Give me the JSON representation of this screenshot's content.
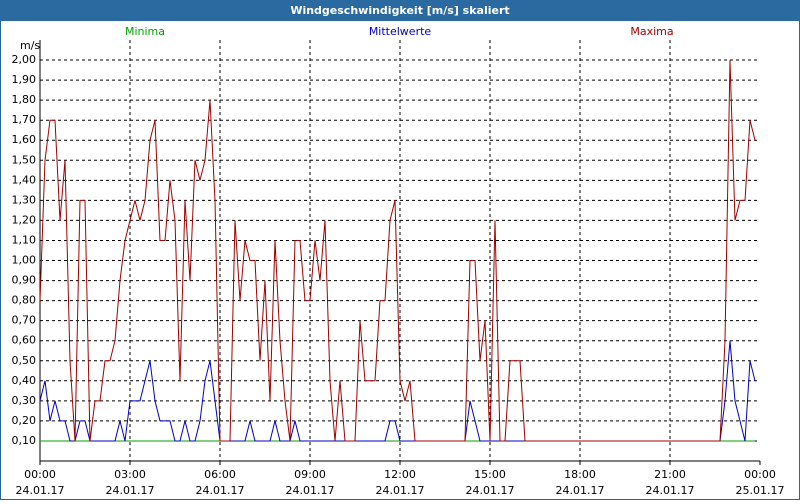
{
  "chart_data": {
    "type": "line",
    "title": "Windgeschwindigkeit [m/s] skaliert",
    "ylabel": "m/s",
    "xlim": [
      0,
      1440
    ],
    "xticks": [
      {
        "value": 0,
        "label": "00:00"
      },
      {
        "value": 180,
        "label": "03:00"
      },
      {
        "value": 360,
        "label": "06:00"
      },
      {
        "value": 540,
        "label": "09:00"
      },
      {
        "value": 720,
        "label": "12:00"
      },
      {
        "value": 900,
        "label": "15:00"
      },
      {
        "value": 1080,
        "label": "18:00"
      },
      {
        "value": 1260,
        "label": "21:00"
      },
      {
        "value": 1440,
        "label": "00:00"
      }
    ],
    "xtick_dates": [
      "24.01.17",
      "24.01.17",
      "24.01.17",
      "24.01.17",
      "24.01.17",
      "24.01.17",
      "24.01.17",
      "24.01.17",
      "25.01.17"
    ],
    "ylim": [
      0,
      2.1
    ],
    "yticks": [
      {
        "value": 0.1,
        "label": "0,10"
      },
      {
        "value": 0.2,
        "label": "0,20"
      },
      {
        "value": 0.3,
        "label": "0,30"
      },
      {
        "value": 0.4,
        "label": "0,40"
      },
      {
        "value": 0.5,
        "label": "0,50"
      },
      {
        "value": 0.6,
        "label": "0,60"
      },
      {
        "value": 0.7,
        "label": "0,70"
      },
      {
        "value": 0.8,
        "label": "0,80"
      },
      {
        "value": 0.9,
        "label": "0,90"
      },
      {
        "value": 1.0,
        "label": "1,00"
      },
      {
        "value": 1.1,
        "label": "1,10"
      },
      {
        "value": 1.2,
        "label": "1,20"
      },
      {
        "value": 1.3,
        "label": "1,30"
      },
      {
        "value": 1.4,
        "label": "1,40"
      },
      {
        "value": 1.5,
        "label": "1,50"
      },
      {
        "value": 1.6,
        "label": "1,60"
      },
      {
        "value": 1.7,
        "label": "1,70"
      },
      {
        "value": 1.8,
        "label": "1,80"
      },
      {
        "value": 1.9,
        "label": "1,90"
      },
      {
        "value": 2.0,
        "label": "2,00"
      }
    ],
    "grid": true,
    "x": [
      0,
      10,
      20,
      30,
      40,
      50,
      60,
      70,
      80,
      90,
      100,
      110,
      120,
      130,
      140,
      150,
      160,
      170,
      180,
      190,
      200,
      210,
      220,
      230,
      240,
      250,
      260,
      270,
      280,
      290,
      300,
      310,
      320,
      330,
      340,
      350,
      360,
      370,
      380,
      390,
      400,
      410,
      420,
      430,
      440,
      450,
      460,
      470,
      480,
      490,
      500,
      510,
      520,
      530,
      540,
      550,
      560,
      570,
      580,
      590,
      600,
      610,
      620,
      630,
      640,
      650,
      660,
      670,
      680,
      690,
      700,
      710,
      720,
      730,
      740,
      750,
      760,
      770,
      780,
      790,
      800,
      810,
      820,
      830,
      840,
      850,
      860,
      870,
      880,
      890,
      900,
      910,
      920,
      930,
      940,
      950,
      960,
      970,
      980,
      990,
      1000,
      1010,
      1020,
      1030,
      1040,
      1050,
      1060,
      1070,
      1080,
      1090,
      1100,
      1110,
      1120,
      1130,
      1140,
      1150,
      1160,
      1170,
      1180,
      1190,
      1200,
      1210,
      1220,
      1230,
      1240,
      1250,
      1260,
      1270,
      1280,
      1290,
      1300,
      1310,
      1320,
      1330,
      1340,
      1350,
      1360,
      1370,
      1380,
      1390,
      1400,
      1410,
      1420,
      1430
    ],
    "series": [
      {
        "name": "Minima",
        "color": "#00a000",
        "values": [
          0.1,
          0.1,
          0.1,
          0.1,
          0.1,
          0.1,
          0.1,
          0.1,
          0.1,
          0.1,
          0.1,
          0.1,
          0.1,
          0.1,
          0.1,
          0.1,
          0.1,
          0.1,
          0.1,
          0.1,
          0.1,
          0.1,
          0.1,
          0.1,
          0.1,
          0.1,
          0.1,
          0.1,
          0.1,
          0.1,
          0.1,
          0.1,
          0.1,
          0.1,
          0.1,
          0.1,
          0.1,
          0.1,
          0.1,
          0.1,
          0.1,
          0.1,
          0.1,
          0.1,
          0.1,
          0.1,
          0.1,
          0.1,
          0.1,
          0.1,
          0.1,
          0.1,
          0.1,
          0.1,
          0.1,
          0.1,
          0.1,
          0.1,
          0.1,
          0.1,
          0.1,
          0.1,
          0.1,
          0.1,
          0.1,
          0.1,
          0.1,
          0.1,
          0.1,
          0.1,
          0.1,
          0.1,
          0.1,
          0.1,
          0.1,
          0.1,
          0.1,
          0.1,
          0.1,
          0.1,
          0.1,
          0.1,
          0.1,
          0.1,
          0.1,
          0.1,
          0.1,
          0.1,
          0.1,
          0.1,
          0.1,
          0.1,
          0.1,
          0.1,
          0.1,
          0.1,
          0.1,
          0.1,
          0.1,
          0.1,
          0.1,
          0.1,
          0.1,
          0.1,
          0.1,
          0.1,
          0.1,
          0.1,
          0.1,
          0.1,
          0.1,
          0.1,
          0.1,
          0.1,
          0.1,
          0.1,
          0.1,
          0.1,
          0.1,
          0.1,
          0.1,
          0.1,
          0.1,
          0.1,
          0.1,
          0.1,
          0.1,
          0.1,
          0.1,
          0.1,
          0.1,
          0.1,
          0.1,
          0.1,
          0.1,
          0.1,
          0.1,
          0.1,
          0.1,
          0.1,
          0.1,
          0.1,
          0.1,
          0.1
        ]
      },
      {
        "name": "Mittelwerte",
        "color": "#0000c0",
        "values": [
          0.3,
          0.4,
          0.2,
          0.3,
          0.2,
          0.2,
          0.1,
          0.1,
          0.2,
          0.2,
          0.1,
          0.1,
          0.1,
          0.1,
          0.1,
          0.1,
          0.2,
          0.1,
          0.3,
          0.3,
          0.3,
          0.4,
          0.5,
          0.3,
          0.2,
          0.2,
          0.2,
          0.1,
          0.1,
          0.2,
          0.1,
          0.1,
          0.2,
          0.4,
          0.5,
          0.3,
          0.1,
          0.1,
          0.1,
          0.1,
          0.1,
          0.1,
          0.2,
          0.1,
          0.1,
          0.1,
          0.1,
          0.2,
          0.1,
          0.1,
          0.1,
          0.2,
          0.1,
          0.1,
          0.1,
          0.1,
          0.1,
          0.1,
          0.1,
          0.1,
          0.1,
          0.1,
          0.1,
          0.1,
          0.1,
          0.1,
          0.1,
          0.1,
          0.1,
          0.1,
          0.2,
          0.2,
          0.1,
          0.1,
          0.1,
          0.1,
          0.1,
          0.1,
          0.1,
          0.1,
          0.1,
          0.1,
          0.1,
          0.1,
          0.1,
          0.1,
          0.3,
          0.2,
          0.1,
          0.1,
          0.1,
          0.1,
          0.1,
          0.1,
          0.1,
          0.1,
          0.1,
          0.1,
          0.1,
          0.1,
          0.1,
          0.1,
          0.1,
          0.1,
          0.1,
          0.1,
          0.1,
          0.1,
          0.1,
          0.1,
          0.1,
          0.1,
          0.1,
          0.1,
          0.1,
          0.1,
          0.1,
          0.1,
          0.1,
          0.1,
          0.1,
          0.1,
          0.1,
          0.1,
          0.1,
          0.1,
          0.1,
          0.1,
          0.1,
          0.1,
          0.1,
          0.1,
          0.1,
          0.1,
          0.1,
          0.1,
          0.1,
          0.3,
          0.6,
          0.3,
          0.2,
          0.1,
          0.5,
          0.4
        ]
      },
      {
        "name": "Maxima",
        "color": "#a00000",
        "values": [
          0.8,
          1.5,
          1.7,
          1.7,
          1.2,
          1.5,
          0.5,
          0.1,
          1.3,
          1.3,
          0.1,
          0.3,
          0.3,
          0.5,
          0.5,
          0.6,
          0.9,
          1.1,
          1.2,
          1.3,
          1.2,
          1.3,
          1.6,
          1.7,
          1.1,
          1.1,
          1.4,
          1.2,
          0.4,
          1.3,
          0.9,
          1.5,
          1.4,
          1.5,
          1.8,
          1.3,
          0.1,
          0.1,
          0.1,
          1.2,
          0.8,
          1.1,
          1.0,
          1.0,
          0.5,
          0.9,
          0.3,
          1.1,
          0.6,
          0.3,
          0.1,
          1.1,
          1.1,
          0.8,
          0.8,
          1.1,
          0.9,
          1.2,
          0.4,
          0.1,
          0.4,
          0.1,
          0.1,
          0.1,
          0.7,
          0.4,
          0.4,
          0.4,
          0.8,
          0.8,
          1.2,
          1.3,
          0.4,
          0.3,
          0.4,
          0.1,
          0.1,
          0.1,
          0.1,
          0.1,
          0.1,
          0.1,
          0.1,
          0.1,
          0.1,
          0.1,
          1.0,
          1.0,
          0.5,
          0.7,
          0.1,
          1.2,
          0.1,
          0.1,
          0.5,
          0.5,
          0.5,
          0.1,
          0.1,
          0.1,
          0.1,
          0.1,
          0.1,
          0.1,
          0.1,
          0.1,
          0.1,
          0.1,
          0.1,
          0.1,
          0.1,
          0.1,
          0.1,
          0.1,
          0.1,
          0.1,
          0.1,
          0.1,
          0.1,
          0.1,
          0.1,
          0.1,
          0.1,
          0.1,
          0.1,
          0.1,
          0.1,
          0.1,
          0.1,
          0.1,
          0.1,
          0.1,
          0.1,
          0.1,
          0.1,
          0.1,
          0.1,
          0.6,
          2.0,
          1.2,
          1.3,
          1.3,
          1.7,
          1.6
        ]
      }
    ]
  }
}
